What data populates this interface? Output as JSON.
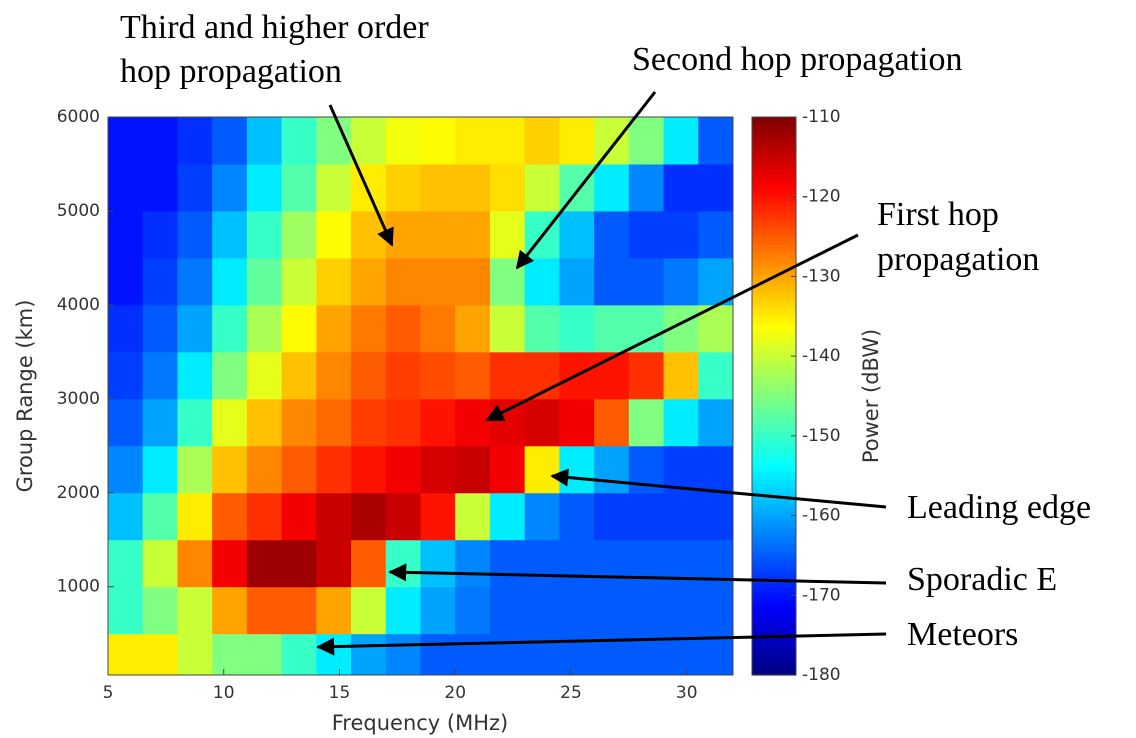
{
  "chart_data": {
    "type": "heatmap",
    "xlabel": "Frequency (MHz)",
    "ylabel": "Group Range (km)",
    "colorbar_label": "Power (dBW)",
    "colormap": "jet",
    "xlim": [
      5,
      32
    ],
    "ylim": [
      60,
      6000
    ],
    "xticks": [
      5,
      10,
      15,
      20,
      25,
      30
    ],
    "yticks": [
      1000,
      2000,
      3000,
      4000,
      5000,
      6000
    ],
    "clim": [
      -180,
      -110
    ],
    "cticks": [
      -110,
      -120,
      -130,
      -140,
      -150,
      -160,
      -170,
      -180
    ],
    "xbins": [
      5,
      6.5,
      8,
      9.5,
      11,
      12.5,
      14,
      15.5,
      17,
      18.5,
      20,
      21.5,
      23,
      24.5,
      26,
      27.5,
      29,
      30.5,
      32
    ],
    "ybins": [
      60,
      500,
      1000,
      1500,
      2000,
      2500,
      3000,
      3500,
      4000,
      4500,
      5000,
      5500,
      6000
    ],
    "z": [
      [
        -135,
        -135,
        -140,
        -145,
        -145,
        -150,
        -155,
        -160,
        -162,
        -165,
        -165,
        -165,
        -165,
        -165,
        -165,
        -165,
        -165,
        -165
      ],
      [
        -150,
        -145,
        -140,
        -130,
        -125,
        -125,
        -130,
        -140,
        -155,
        -160,
        -163,
        -165,
        -165,
        -165,
        -165,
        -165,
        -165,
        -165
      ],
      [
        -150,
        -140,
        -128,
        -118,
        -112,
        -112,
        -115,
        -125,
        -150,
        -158,
        -162,
        -165,
        -165,
        -165,
        -165,
        -165,
        -165,
        -165
      ],
      [
        -158,
        -148,
        -135,
        -125,
        -122,
        -118,
        -115,
        -113,
        -115,
        -120,
        -140,
        -155,
        -162,
        -165,
        -167,
        -167,
        -167,
        -167
      ],
      [
        -162,
        -155,
        -142,
        -132,
        -128,
        -125,
        -122,
        -120,
        -118,
        -116,
        -115,
        -118,
        -135,
        -155,
        -160,
        -165,
        -167,
        -167
      ],
      [
        -165,
        -160,
        -150,
        -138,
        -132,
        -128,
        -126,
        -123,
        -122,
        -120,
        -118,
        -117,
        -116,
        -118,
        -125,
        -145,
        -155,
        -160
      ],
      [
        -167,
        -163,
        -155,
        -145,
        -138,
        -132,
        -128,
        -125,
        -123,
        -124,
        -125,
        -122,
        -122,
        -120,
        -120,
        -122,
        -132,
        -150
      ],
      [
        -168,
        -165,
        -160,
        -150,
        -142,
        -136,
        -130,
        -127,
        -125,
        -127,
        -130,
        -140,
        -148,
        -150,
        -148,
        -148,
        -145,
        -142
      ],
      [
        -170,
        -167,
        -163,
        -155,
        -147,
        -140,
        -133,
        -130,
        -128,
        -128,
        -128,
        -145,
        -155,
        -160,
        -165,
        -165,
        -163,
        -160
      ],
      [
        -170,
        -168,
        -165,
        -158,
        -150,
        -143,
        -136,
        -132,
        -130,
        -130,
        -130,
        -138,
        -150,
        -158,
        -165,
        -167,
        -167,
        -165
      ],
      [
        -170,
        -170,
        -167,
        -162,
        -155,
        -148,
        -140,
        -135,
        -133,
        -132,
        -132,
        -134,
        -140,
        -148,
        -155,
        -162,
        -168,
        -168
      ],
      [
        -170,
        -170,
        -168,
        -165,
        -158,
        -150,
        -145,
        -140,
        -137,
        -136,
        -135,
        -135,
        -133,
        -135,
        -140,
        -145,
        -155,
        -165
      ]
    ],
    "annotations": [
      [
        "Third and higher order",
        "hop propagation"
      ],
      [
        "Second hop propagation"
      ],
      [
        "First hop",
        "propagation"
      ],
      [
        "Leading edge"
      ],
      [
        "Sporadic E"
      ],
      [
        "Meteors"
      ]
    ]
  }
}
